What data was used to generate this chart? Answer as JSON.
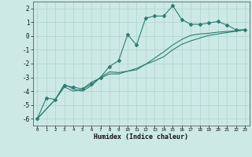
{
  "xlabel": "Humidex (Indice chaleur)",
  "ylabel": "",
  "xlim": [
    -0.5,
    23.5
  ],
  "ylim": [
    -6.5,
    2.5
  ],
  "yticks": [
    -6,
    -5,
    -4,
    -3,
    -2,
    -1,
    0,
    1,
    2
  ],
  "xticks": [
    0,
    1,
    2,
    3,
    4,
    5,
    6,
    7,
    8,
    9,
    10,
    11,
    12,
    13,
    14,
    15,
    16,
    17,
    18,
    19,
    20,
    21,
    22,
    23
  ],
  "bg_color": "#cce9e5",
  "grid_color": "#afd4cf",
  "line_color": "#2e7d72",
  "line1_x": [
    0,
    1,
    2,
    3,
    4,
    5,
    6,
    7,
    8,
    9,
    10,
    11,
    12,
    13,
    14,
    15,
    16,
    17,
    18,
    19,
    20,
    21,
    22,
    23
  ],
  "line1_y": [
    -6.0,
    -4.5,
    -4.6,
    -3.6,
    -3.7,
    -3.85,
    -3.5,
    -3.0,
    -2.2,
    -1.8,
    0.1,
    -0.65,
    1.3,
    1.45,
    1.45,
    2.2,
    1.2,
    0.85,
    0.85,
    0.95,
    1.05,
    0.8,
    0.45,
    0.45
  ],
  "line2_x": [
    0,
    2,
    3,
    4,
    5,
    6,
    7,
    8,
    9,
    10,
    11,
    12,
    13,
    14,
    15,
    16,
    17,
    18,
    19,
    20,
    21,
    22,
    23
  ],
  "line2_y": [
    -6.0,
    -4.6,
    -3.5,
    -3.85,
    -4.0,
    -3.6,
    -3.0,
    -2.6,
    -2.65,
    -2.55,
    -2.45,
    -2.05,
    -1.8,
    -1.5,
    -1.0,
    -0.6,
    -0.35,
    -0.15,
    0.05,
    0.15,
    0.25,
    0.35,
    0.45
  ],
  "line3_x": [
    0,
    2,
    3,
    4,
    5,
    6,
    7,
    8,
    9,
    10,
    11,
    12,
    13,
    14,
    15,
    16,
    17,
    18,
    19,
    20,
    21,
    22,
    23
  ],
  "line3_y": [
    -6.0,
    -4.6,
    -3.7,
    -4.0,
    -3.85,
    -3.35,
    -3.05,
    -2.75,
    -2.75,
    -2.55,
    -2.35,
    -2.05,
    -1.6,
    -1.15,
    -0.65,
    -0.25,
    0.05,
    0.15,
    0.2,
    0.28,
    0.33,
    0.38,
    0.45
  ]
}
